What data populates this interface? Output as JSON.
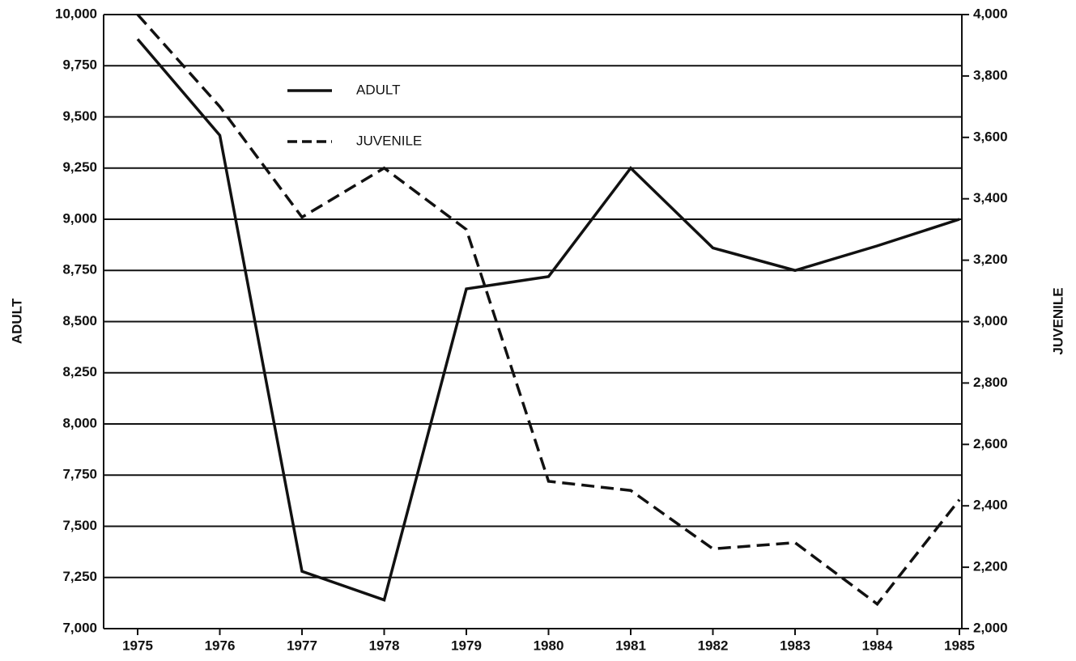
{
  "chart_data": {
    "type": "line",
    "categories": [
      "1975",
      "1976",
      "1977",
      "1978",
      "1979",
      "1980",
      "1981",
      "1982",
      "1983",
      "1984",
      "1985"
    ],
    "ylabel": "ADULT",
    "y2label": "JUVENILE",
    "series": [
      {
        "name": "ADULT",
        "color": "#111111",
        "style": "solid",
        "values": [
          9880,
          9410,
          7280,
          7140,
          8660,
          8720,
          9250,
          8860,
          8750,
          8870,
          9000
        ]
      },
      {
        "name": "JUVENILE",
        "color": "#111111",
        "style": "dashed",
        "axis": "y2",
        "values": [
          4000,
          3700,
          3340,
          3500,
          3300,
          2480,
          2450,
          2260,
          2280,
          2080,
          2420
        ]
      }
    ],
    "ylim": [
      7000,
      10000
    ],
    "yticks": [
      {
        "value": 7000,
        "label": "7,000"
      },
      {
        "value": 7250,
        "label": "7,250"
      },
      {
        "value": 7500,
        "label": "7,500"
      },
      {
        "value": 7750,
        "label": "7,750"
      },
      {
        "value": 8000,
        "label": "8,000"
      },
      {
        "value": 8250,
        "label": "8,250"
      },
      {
        "value": 8500,
        "label": "8,500"
      },
      {
        "value": 8750,
        "label": "8,750"
      },
      {
        "value": 9000,
        "label": "9,000"
      },
      {
        "value": 9250,
        "label": "9,250"
      },
      {
        "value": 9500,
        "label": "9,500"
      },
      {
        "value": 9750,
        "label": "9,750"
      },
      {
        "value": 10000,
        "label": "10,000"
      }
    ],
    "y2lim": [
      2000,
      4000
    ],
    "y2ticks": [
      {
        "value": 2000,
        "label": "2,000"
      },
      {
        "value": 2200,
        "label": "2,200"
      },
      {
        "value": 2400,
        "label": "2,400"
      },
      {
        "value": 2600,
        "label": "2,600"
      },
      {
        "value": 2800,
        "label": "2,800"
      },
      {
        "value": 3000,
        "label": "3,000"
      },
      {
        "value": 3200,
        "label": "3,200"
      },
      {
        "value": 3400,
        "label": "3,400"
      },
      {
        "value": 3600,
        "label": "3,600"
      },
      {
        "value": 3800,
        "label": "3,800"
      },
      {
        "value": 4000,
        "label": "4,000"
      }
    ],
    "grid": true,
    "legend": "upper left"
  }
}
